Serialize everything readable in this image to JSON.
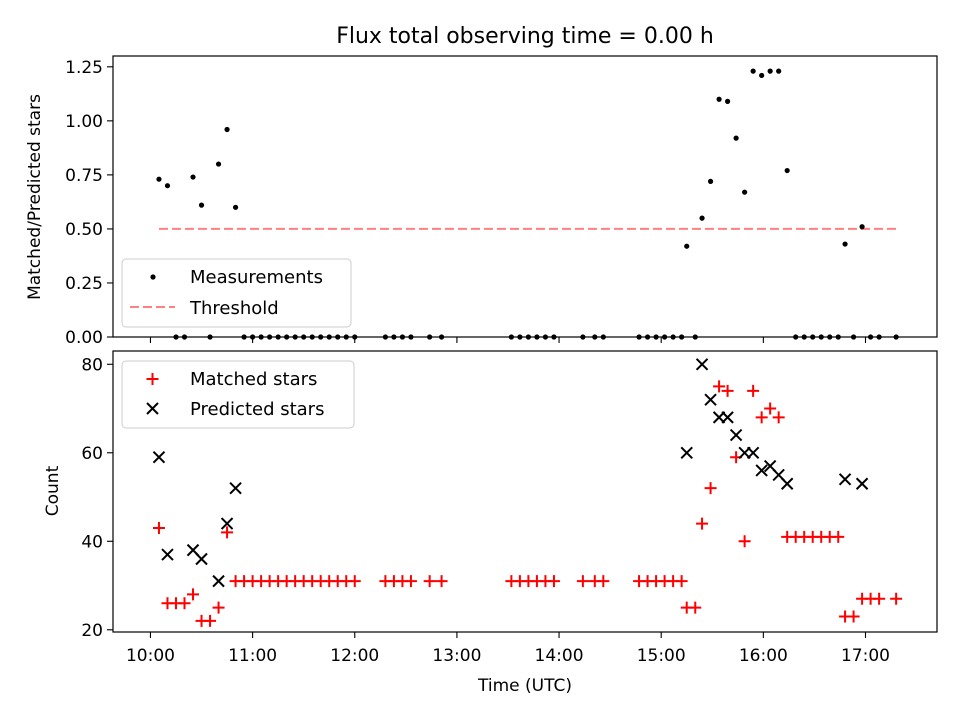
{
  "figure_title": "Flux total observing time = 0.00 h",
  "colors": {
    "measurements": "#000000",
    "threshold": "#ff8080",
    "matched": "#ff0000",
    "predicted": "#000000"
  },
  "chart_data": [
    {
      "type": "scatter",
      "title": "Flux total observing time = 0.00 h",
      "xlabel": "",
      "ylabel": "Matched/Predicted stars",
      "xlim": [
        "09:38",
        "17:42"
      ],
      "ylim": [
        0,
        1.3
      ],
      "x_ticks": [
        "10:00",
        "11:00",
        "12:00",
        "13:00",
        "14:00",
        "15:00",
        "16:00",
        "17:00"
      ],
      "y_ticks": [
        "0.00",
        "0.25",
        "0.50",
        "0.75",
        "1.00",
        "1.25"
      ],
      "legend_position": "lower-left",
      "series": [
        {
          "name": "Measurements",
          "marker": "dot",
          "points": [
            [
              "10:05",
              0.73
            ],
            [
              "10:10",
              0.7
            ],
            [
              "10:15",
              0.0
            ],
            [
              "10:20",
              0.0
            ],
            [
              "10:25",
              0.74
            ],
            [
              "10:30",
              0.61
            ],
            [
              "10:35",
              0.0
            ],
            [
              "10:40",
              0.8
            ],
            [
              "10:45",
              0.96
            ],
            [
              "10:50",
              0.6
            ],
            [
              "10:55",
              0.0
            ],
            [
              "11:00",
              0.0
            ],
            [
              "11:05",
              0.0
            ],
            [
              "11:10",
              0.0
            ],
            [
              "11:15",
              0.0
            ],
            [
              "11:20",
              0.0
            ],
            [
              "11:25",
              0.0
            ],
            [
              "11:30",
              0.0
            ],
            [
              "11:35",
              0.0
            ],
            [
              "11:40",
              0.0
            ],
            [
              "11:45",
              0.0
            ],
            [
              "11:50",
              0.0
            ],
            [
              "11:55",
              0.0
            ],
            [
              "12:00",
              0.0
            ],
            [
              "12:18",
              0.0
            ],
            [
              "12:23",
              0.0
            ],
            [
              "12:28",
              0.0
            ],
            [
              "12:33",
              0.0
            ],
            [
              "12:44",
              0.0
            ],
            [
              "12:51",
              0.0
            ],
            [
              "13:32",
              0.0
            ],
            [
              "13:37",
              0.0
            ],
            [
              "13:42",
              0.0
            ],
            [
              "13:47",
              0.0
            ],
            [
              "13:52",
              0.0
            ],
            [
              "13:57",
              0.0
            ],
            [
              "14:14",
              0.0
            ],
            [
              "14:21",
              0.0
            ],
            [
              "14:26",
              0.0
            ],
            [
              "14:47",
              0.0
            ],
            [
              "14:52",
              0.0
            ],
            [
              "14:57",
              0.0
            ],
            [
              "15:02",
              0.0
            ],
            [
              "15:07",
              0.0
            ],
            [
              "15:12",
              0.0
            ],
            [
              "15:15",
              0.42
            ],
            [
              "15:20",
              0.0
            ],
            [
              "15:24",
              0.55
            ],
            [
              "15:29",
              0.72
            ],
            [
              "15:34",
              1.1
            ],
            [
              "15:39",
              1.09
            ],
            [
              "15:44",
              0.92
            ],
            [
              "15:49",
              0.67
            ],
            [
              "15:54",
              1.23
            ],
            [
              "15:59",
              1.21
            ],
            [
              "16:04",
              1.23
            ],
            [
              "16:09",
              1.23
            ],
            [
              "16:14",
              0.77
            ],
            [
              "16:19",
              0.0
            ],
            [
              "16:24",
              0.0
            ],
            [
              "16:29",
              0.0
            ],
            [
              "16:34",
              0.0
            ],
            [
              "16:39",
              0.0
            ],
            [
              "16:44",
              0.0
            ],
            [
              "16:48",
              0.43
            ],
            [
              "16:53",
              0.0
            ],
            [
              "16:58",
              0.51
            ],
            [
              "17:03",
              0.0
            ],
            [
              "17:08",
              0.0
            ],
            [
              "17:18",
              0.0
            ]
          ]
        },
        {
          "name": "Threshold",
          "style": "dashed",
          "points": [
            [
              "10:05",
              0.5
            ],
            [
              "17:18",
              0.5
            ]
          ]
        }
      ]
    },
    {
      "type": "scatter",
      "xlabel": "Time (UTC)",
      "ylabel": "Count",
      "xlim": [
        "09:38",
        "17:42"
      ],
      "ylim": [
        19.5,
        83
      ],
      "x_ticks": [
        "10:00",
        "11:00",
        "12:00",
        "13:00",
        "14:00",
        "15:00",
        "16:00",
        "17:00"
      ],
      "y_ticks": [
        "20",
        "40",
        "60",
        "80"
      ],
      "legend_position": "upper-left",
      "series": [
        {
          "name": "Matched stars",
          "marker": "plus",
          "points": [
            [
              "10:05",
              43
            ],
            [
              "10:10",
              26
            ],
            [
              "10:15",
              26
            ],
            [
              "10:20",
              26
            ],
            [
              "10:25",
              28
            ],
            [
              "10:30",
              22
            ],
            [
              "10:35",
              22
            ],
            [
              "10:40",
              25
            ],
            [
              "10:45",
              42
            ],
            [
              "10:50",
              31
            ],
            [
              "10:55",
              31
            ],
            [
              "11:00",
              31
            ],
            [
              "11:05",
              31
            ],
            [
              "11:10",
              31
            ],
            [
              "11:15",
              31
            ],
            [
              "11:20",
              31
            ],
            [
              "11:25",
              31
            ],
            [
              "11:30",
              31
            ],
            [
              "11:35",
              31
            ],
            [
              "11:40",
              31
            ],
            [
              "11:45",
              31
            ],
            [
              "11:50",
              31
            ],
            [
              "11:55",
              31
            ],
            [
              "12:00",
              31
            ],
            [
              "12:18",
              31
            ],
            [
              "12:23",
              31
            ],
            [
              "12:28",
              31
            ],
            [
              "12:33",
              31
            ],
            [
              "12:44",
              31
            ],
            [
              "12:51",
              31
            ],
            [
              "13:32",
              31
            ],
            [
              "13:37",
              31
            ],
            [
              "13:42",
              31
            ],
            [
              "13:47",
              31
            ],
            [
              "13:52",
              31
            ],
            [
              "13:57",
              31
            ],
            [
              "14:14",
              31
            ],
            [
              "14:21",
              31
            ],
            [
              "14:26",
              31
            ],
            [
              "14:47",
              31
            ],
            [
              "14:52",
              31
            ],
            [
              "14:57",
              31
            ],
            [
              "15:02",
              31
            ],
            [
              "15:07",
              31
            ],
            [
              "15:12",
              31
            ],
            [
              "15:15",
              25
            ],
            [
              "15:20",
              25
            ],
            [
              "15:24",
              44
            ],
            [
              "15:29",
              52
            ],
            [
              "15:34",
              75
            ],
            [
              "15:39",
              74
            ],
            [
              "15:44",
              59
            ],
            [
              "15:49",
              40
            ],
            [
              "15:54",
              74
            ],
            [
              "15:59",
              68
            ],
            [
              "16:04",
              70
            ],
            [
              "16:09",
              68
            ],
            [
              "16:14",
              41
            ],
            [
              "16:19",
              41
            ],
            [
              "16:24",
              41
            ],
            [
              "16:29",
              41
            ],
            [
              "16:34",
              41
            ],
            [
              "16:39",
              41
            ],
            [
              "16:44",
              41
            ],
            [
              "16:48",
              23
            ],
            [
              "16:53",
              23
            ],
            [
              "16:58",
              27
            ],
            [
              "17:03",
              27
            ],
            [
              "17:08",
              27
            ],
            [
              "17:18",
              27
            ]
          ]
        },
        {
          "name": "Predicted stars",
          "marker": "x",
          "points": [
            [
              "10:05",
              59
            ],
            [
              "10:10",
              37
            ],
            [
              "10:25",
              38
            ],
            [
              "10:30",
              36
            ],
            [
              "10:40",
              31
            ],
            [
              "10:45",
              44
            ],
            [
              "10:50",
              52
            ],
            [
              "15:15",
              60
            ],
            [
              "15:24",
              80
            ],
            [
              "15:29",
              72
            ],
            [
              "15:34",
              68
            ],
            [
              "15:39",
              68
            ],
            [
              "15:44",
              64
            ],
            [
              "15:49",
              60
            ],
            [
              "15:54",
              60
            ],
            [
              "15:59",
              56
            ],
            [
              "16:04",
              57
            ],
            [
              "16:09",
              55
            ],
            [
              "16:14",
              53
            ],
            [
              "16:48",
              54
            ],
            [
              "16:58",
              53
            ]
          ]
        }
      ]
    }
  ]
}
